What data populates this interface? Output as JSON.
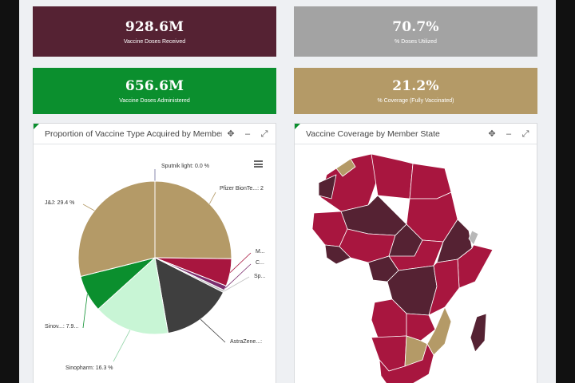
{
  "kpis": {
    "received": {
      "value": "928.6M",
      "label": "Vaccine Doses Received",
      "color": "#552233"
    },
    "utilized": {
      "value": "70.7%",
      "label": "% Doses Utilized",
      "color": "#a3a3a3"
    },
    "administered": {
      "value": "656.6M",
      "label": "Vaccine Doses Administered",
      "color": "#0b8f2e"
    },
    "coverage": {
      "value": "21.2%",
      "label": "% Coverage (Fully Vaccinated)",
      "color": "#b49a67"
    }
  },
  "panels": {
    "pie": {
      "title": "Proportion of Vaccine Type Acquired by Member State"
    },
    "map": {
      "title": "Vaccine Coverage by Member State"
    }
  },
  "chart_data": {
    "type": "pie",
    "title": "Proportion of Vaccine Type Acquired by Member State",
    "slices": [
      {
        "label": "Sputnik light: 0.0 %",
        "value": 0.0,
        "color": "#6c6c9a"
      },
      {
        "label": "Pfizer BionTe...: 2",
        "value": 25.6,
        "color": "#b49a67"
      },
      {
        "label": "M...",
        "value": 5.9,
        "color": "#a8163f"
      },
      {
        "label": "C...",
        "value": 1.0,
        "color": "#7b2e6e"
      },
      {
        "label": "Sp...",
        "value": 0.5,
        "color": "#c0c0c0"
      },
      {
        "label": "AstraZene...: ",
        "value": 15.0,
        "color": "#3f3f3f"
      },
      {
        "label": "Sinopharm: 16.3 %",
        "value": 16.3,
        "color": "#c8f5d5"
      },
      {
        "label": "Sinov...: 7.9...",
        "value": 7.9,
        "color": "#0b8f2e"
      },
      {
        "label": "J&J: 29.4 %",
        "value": 29.4,
        "color": "#b49a67"
      }
    ]
  },
  "map_colors": {
    "high": "#a8163f",
    "dark": "#552233",
    "tan": "#b49a67",
    "grey": "#b8b8b8",
    "border": "#ffffff"
  }
}
